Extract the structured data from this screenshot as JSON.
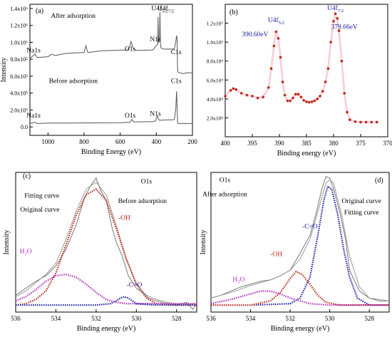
{
  "chart_data": [
    {
      "panel_label": "(a)",
      "type": "line",
      "xlabel": "Binding Energy (eV)",
      "ylabel": "Intensity",
      "xlim": [
        1100,
        200
      ],
      "ylim": [
        -100000.0,
        1450000.0
      ],
      "xticks": [
        1000,
        800,
        600,
        400,
        200
      ],
      "yticks": [
        0,
        200000,
        400000,
        600000,
        800000,
        1000000,
        1200000,
        1400000
      ],
      "ytick_labels": [
        "0.0",
        "2.0x10⁵",
        "4.0x10⁵",
        "6.0x10⁵",
        "8.0x10⁵",
        "1.0x10⁶",
        "1.2x10⁶",
        "1.4x10⁶"
      ],
      "annotations": [
        {
          "text": "After adsorption",
          "x": 860,
          "y": 1290000
        },
        {
          "text": "Before adsorption",
          "x": 860,
          "y": 520000
        },
        {
          "text": "Na1s",
          "x": 1080,
          "y": 880000
        },
        {
          "text": "Na1s",
          "x": 1080,
          "y": 110000
        },
        {
          "text": "O1s",
          "x": 545,
          "y": 900000
        },
        {
          "text": "O1s",
          "x": 545,
          "y": 110000
        },
        {
          "text": "N1s",
          "x": 405,
          "y": 1010000
        },
        {
          "text": "N1s",
          "x": 405,
          "y": 130000
        },
        {
          "text": "C1s",
          "x": 290,
          "y": 860000
        },
        {
          "text": "C1s",
          "x": 290,
          "y": 520000
        },
        {
          "text": "U4f",
          "sub": "5/2",
          "x": 382,
          "y": 1380000
        },
        {
          "text": "U4f",
          "sub": "7/2",
          "x": 348,
          "y": 1380000
        }
      ],
      "series": [
        {
          "label": "After adsorption",
          "color": "#555555",
          "x": [
            1100,
            1072,
            1060,
            1000,
            980,
            960,
            900,
            800,
            790,
            780,
            700,
            560,
            550,
            540,
            530,
            520,
            500,
            420,
            400,
            392,
            390,
            388,
            386,
            382,
            380,
            378,
            376,
            372,
            360,
            300,
            292,
            288,
            285,
            282,
            280,
            270,
            250,
            230,
            200
          ],
          "y": [
            810000,
            860000,
            820000,
            830000,
            860000,
            845000,
            870000,
            880000,
            960000,
            880000,
            900000,
            910000,
            935000,
            1010000,
            940000,
            910000,
            905000,
            910000,
            960000,
            980000,
            1300000,
            1000000,
            1000000,
            1050000,
            1360000,
            1060000,
            950000,
            930000,
            920000,
            920000,
            1010000,
            1080000,
            1040000,
            660000,
            650000,
            640000,
            630000,
            640000,
            640000
          ]
        },
        {
          "label": "Before adsorption",
          "color": "#555555",
          "x": [
            1100,
            1072,
            1060,
            1000,
            900,
            600,
            545,
            535,
            525,
            500,
            420,
            405,
            395,
            385,
            300,
            292,
            288,
            285,
            282,
            280,
            250,
            200
          ],
          "y": [
            40000,
            55000,
            40000,
            45000,
            45000,
            50000,
            55000,
            90000,
            58000,
            60000,
            62000,
            70000,
            130000,
            80000,
            85000,
            220000,
            420000,
            240000,
            50000,
            40000,
            40000,
            40000
          ]
        }
      ]
    },
    {
      "panel_label": "(b)",
      "type": "scatter",
      "xlabel": "Binding energy (eV)",
      "ylabel": "",
      "xlim": [
        400,
        370
      ],
      "ylim": [
        0,
        140000
      ],
      "xticks": [
        400,
        395,
        390,
        385,
        380,
        375,
        370
      ],
      "yticks": [
        20000,
        40000,
        60000,
        80000,
        100000,
        120000
      ],
      "ytick_labels": [
        "2.0x10⁴",
        "4.0x10⁴",
        "6.0x10⁴",
        "8.0x10⁴",
        "1.0x10⁵",
        "1.2x10⁵"
      ],
      "annotations": [
        {
          "text": "U4f",
          "sub": "5/2",
          "x": 390.6,
          "y": 121000,
          "color": "#1a1aa0"
        },
        {
          "text": "U4f",
          "sub": "7/2",
          "x": 379.66,
          "y": 134000,
          "color": "#1a1aa0"
        },
        {
          "text": "390.60eV",
          "x": 394.5,
          "y": 106000,
          "color": "#1a1aa0"
        },
        {
          "text": "379.66eV",
          "x": 378.0,
          "y": 114000,
          "color": "#1a1aa0"
        }
      ],
      "series": [
        {
          "label": "U4f spectrum",
          "color": "#c0281a",
          "x": [
            400,
            399,
            398.5,
            398,
            397,
            396,
            395,
            394,
            393,
            392,
            391.5,
            391,
            390.6,
            390.2,
            389.8,
            389.4,
            389,
            388.5,
            388,
            387.5,
            387,
            386.5,
            386,
            385.5,
            385,
            384.5,
            384,
            383.5,
            383,
            382.5,
            382,
            381.5,
            381,
            380.5,
            380,
            379.66,
            379.3,
            379,
            378.5,
            378,
            377.5,
            377,
            376,
            375,
            374,
            373,
            372
          ],
          "y": [
            43000,
            49000,
            51000,
            50000,
            46000,
            44000,
            43000,
            41000,
            42000,
            52000,
            72000,
            96000,
            111000,
            104000,
            84000,
            58000,
            44000,
            38000,
            38000,
            41000,
            45000,
            45000,
            42000,
            38500,
            37000,
            36500,
            37000,
            38000,
            40000,
            43000,
            48000,
            58000,
            72000,
            100000,
            122000,
            130000,
            125000,
            112000,
            80000,
            46000,
            26000,
            18000,
            16000,
            15500,
            15500,
            15500,
            15500
          ]
        }
      ]
    },
    {
      "panel_label": "(c)",
      "type": "line",
      "xlabel": "Binding energy (eV)",
      "ylabel": "Intensity",
      "xlim": [
        536,
        527
      ],
      "ylim": [
        0,
        1.0
      ],
      "xticks": [
        536,
        534,
        532,
        530,
        528
      ],
      "annotations": [
        {
          "text": "O1s",
          "x": 529.5,
          "y": 0.92
        },
        {
          "text": "Before adsorption",
          "x": 529.7,
          "y": 0.78
        },
        {
          "text": "Fitting curve",
          "x": 534.7,
          "y": 0.82
        },
        {
          "text": "Original curve",
          "x": 534.8,
          "y": 0.72
        },
        {
          "text": "-OH",
          "x": 530.6,
          "y": 0.66,
          "color": "#c0281a"
        },
        {
          "text": "H₂O",
          "x": 535.5,
          "y": 0.42,
          "color": "#b030c0"
        },
        {
          "text": "-C=O",
          "x": 530.1,
          "y": 0.18,
          "color": "#1a1aa0"
        }
      ],
      "series": [
        {
          "label": "Original curve",
          "color": "#777777",
          "x": [
            536,
            535.5,
            535,
            534.5,
            534,
            533.5,
            533,
            532.6,
            532.3,
            532.0,
            531.8,
            531.5,
            531.2,
            531.0,
            530.7,
            530.4,
            530.0,
            529.7,
            529.4,
            529.0,
            528.5,
            528.0,
            527.5,
            527.2,
            527.0
          ],
          "y": [
            0.12,
            0.17,
            0.22,
            0.26,
            0.33,
            0.45,
            0.62,
            0.81,
            0.9,
            0.96,
            0.88,
            0.8,
            0.6,
            0.5,
            0.4,
            0.26,
            0.17,
            0.14,
            0.1,
            0.08,
            0.06,
            0.05,
            0.07,
            0.02,
            0.06
          ]
        },
        {
          "label": "Fitting curve",
          "color": "#999999",
          "x": [
            536,
            535.5,
            535,
            534.5,
            534,
            533.5,
            533,
            532.5,
            532.0,
            531.5,
            531.0,
            530.5,
            530.0,
            529.5,
            529.0,
            528.5,
            528.0,
            527.0
          ],
          "y": [
            0.11,
            0.15,
            0.21,
            0.27,
            0.35,
            0.52,
            0.72,
            0.88,
            0.93,
            0.84,
            0.62,
            0.38,
            0.2,
            0.12,
            0.09,
            0.07,
            0.06,
            0.06
          ]
        },
        {
          "label": "-OH",
          "color": "#c0281a",
          "x": [
            536,
            535.5,
            535,
            534.5,
            534,
            533.5,
            533,
            532.5,
            532.0,
            531.5,
            531.0,
            530.5,
            530.0,
            529.5,
            529.0,
            528.0,
            527.0
          ],
          "y": [
            0.05,
            0.06,
            0.09,
            0.15,
            0.28,
            0.48,
            0.69,
            0.84,
            0.88,
            0.8,
            0.6,
            0.38,
            0.2,
            0.1,
            0.06,
            0.05,
            0.05
          ]
        },
        {
          "label": "H₂O",
          "color": "#b030c0",
          "x": [
            536,
            535.5,
            535,
            534.5,
            534,
            533.5,
            533,
            532.5,
            532.0,
            531.5,
            531.0,
            530.5,
            530.0,
            529.0,
            527.0
          ],
          "y": [
            0.08,
            0.11,
            0.16,
            0.22,
            0.26,
            0.27,
            0.25,
            0.2,
            0.14,
            0.09,
            0.07,
            0.06,
            0.06,
            0.06,
            0.06
          ]
        },
        {
          "label": "-C=O",
          "color": "#1a1aa0",
          "x": [
            536,
            534,
            532,
            531.3,
            531.0,
            530.8,
            530.6,
            530.4,
            530.2,
            530.0,
            529.0,
            527.0
          ],
          "y": [
            0.05,
            0.05,
            0.05,
            0.06,
            0.08,
            0.1,
            0.11,
            0.1,
            0.08,
            0.06,
            0.05,
            0.05
          ]
        }
      ]
    },
    {
      "panel_label": "(d)",
      "type": "line",
      "xlabel": "Binding energy (eV)",
      "ylabel": "Intensity",
      "xlim": [
        536,
        527
      ],
      "ylim": [
        0,
        1.0
      ],
      "xticks": [
        536,
        534,
        532,
        530,
        528
      ],
      "annotations": [
        {
          "text": "O1s",
          "x": 535.3,
          "y": 0.93
        },
        {
          "text": "After adsorption",
          "x": 535.3,
          "y": 0.83
        },
        {
          "text": "Original curve",
          "x": 528.4,
          "y": 0.78
        },
        {
          "text": "Fitting curve",
          "x": 528.4,
          "y": 0.7
        },
        {
          "text": "-C=O",
          "x": 531.0,
          "y": 0.6,
          "color": "#1a1aa0"
        },
        {
          "text": "-OH",
          "x": 532.7,
          "y": 0.4,
          "color": "#c0281a"
        },
        {
          "text": "H₂O",
          "x": 534.6,
          "y": 0.22,
          "color": "#b030c0"
        },
        {
          "text": "(d)",
          "x": 527.7,
          "y": 0.95
        }
      ],
      "series": [
        {
          "label": "Original curve",
          "color": "#777777",
          "x": [
            536,
            535.5,
            535,
            534.5,
            534,
            533.5,
            533,
            532.5,
            532,
            531.5,
            531,
            530.7,
            530.4,
            530.2,
            530.0,
            529.8,
            529.5,
            529.2,
            529.0,
            528.5,
            528,
            527.5,
            527
          ],
          "y": [
            0.1,
            0.12,
            0.15,
            0.18,
            0.2,
            0.22,
            0.23,
            0.26,
            0.3,
            0.42,
            0.55,
            0.7,
            0.88,
            0.97,
            0.96,
            0.88,
            0.72,
            0.52,
            0.3,
            0.15,
            0.1,
            0.08,
            0.08
          ]
        },
        {
          "label": "Fitting curve",
          "color": "#999999",
          "x": [
            536,
            535,
            534,
            533,
            532.5,
            532,
            531.5,
            531,
            530.6,
            530.2,
            530.0,
            529.8,
            529.4,
            529.0,
            528.5,
            528,
            527
          ],
          "y": [
            0.1,
            0.14,
            0.19,
            0.23,
            0.26,
            0.3,
            0.38,
            0.52,
            0.72,
            0.92,
            0.95,
            0.92,
            0.7,
            0.4,
            0.18,
            0.1,
            0.08
          ]
        },
        {
          "label": "-C=O",
          "color": "#1a1aa0",
          "x": [
            536,
            534,
            532,
            531.5,
            531,
            530.6,
            530.3,
            530.1,
            529.9,
            529.6,
            529.3,
            529.0,
            528.6,
            528,
            527
          ],
          "y": [
            0.05,
            0.05,
            0.06,
            0.1,
            0.25,
            0.55,
            0.8,
            0.9,
            0.88,
            0.7,
            0.45,
            0.25,
            0.1,
            0.05,
            0.05
          ]
        },
        {
          "label": "-OH",
          "color": "#c0281a",
          "x": [
            536,
            534,
            533,
            532.5,
            532,
            531.7,
            531.4,
            531,
            530.6,
            530.2,
            529.5,
            528,
            527
          ],
          "y": [
            0.05,
            0.05,
            0.08,
            0.14,
            0.24,
            0.29,
            0.27,
            0.2,
            0.12,
            0.07,
            0.05,
            0.05,
            0.05
          ]
        },
        {
          "label": "H₂O",
          "color": "#b030c0",
          "x": [
            536,
            535,
            534,
            533.5,
            533,
            532.5,
            532,
            531,
            530,
            527
          ],
          "y": [
            0.06,
            0.09,
            0.13,
            0.15,
            0.15,
            0.13,
            0.1,
            0.06,
            0.05,
            0.05
          ]
        }
      ]
    }
  ]
}
